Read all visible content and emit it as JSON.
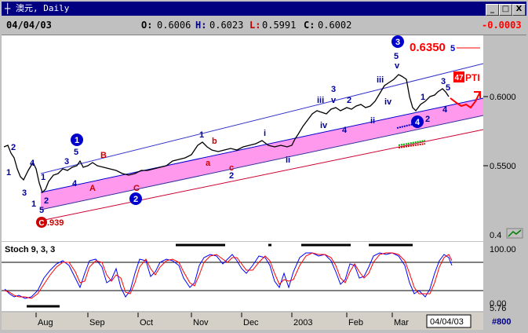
{
  "window": {
    "icon": "chart-cross-icon",
    "title": "澳元, Daily",
    "buttons": [
      "_",
      "□",
      "X"
    ]
  },
  "infobar": {
    "date": "04/04/03",
    "open_label": "O:",
    "open": "0.6006",
    "high_label": "H:",
    "high": "0.6023",
    "low_label": "L:",
    "low": "0.5991",
    "close_label": "C:",
    "close": "0.6002",
    "change": "-0.0003"
  },
  "price_scale": {
    "ticks": [
      "0.6000",
      "0.5500"
    ],
    "bottom_label": "0.4",
    "corner_icon": "chart-icon"
  },
  "annotations": {
    "target_price": "0.6350",
    "target_wave": "5",
    "pti_badge": "47",
    "pti_text": "PTI",
    "low_value": ".939",
    "circle_c_bottom": "C",
    "circle_1": "1",
    "circle_2": "2",
    "circle_3": "3",
    "circle_4": "4"
  },
  "wave_labels_blue": [
    "2",
    "1",
    "4",
    "3",
    "1",
    "3",
    "5",
    "4",
    "1",
    "2",
    "5",
    "2",
    "1",
    "i",
    "ii",
    "iii",
    "v",
    "3",
    "iv",
    "4",
    "ii",
    "iii",
    "iv",
    "5",
    "v",
    "1",
    "2",
    "3",
    "4",
    "5"
  ],
  "wave_labels_red": [
    "B",
    "A",
    "C",
    "b",
    "a",
    "c"
  ],
  "stochastic": {
    "title": "Stoch 9, 3, 3",
    "upper_label": "100.00",
    "bottom_label": "0.00",
    "value_label": "5.76"
  },
  "x_axis": {
    "months": [
      "Aug",
      "Sep",
      "Oct",
      "Nov",
      "Dec",
      "2003",
      "Feb",
      "Mar"
    ],
    "current_date": "04/04/03",
    "bar_count": "#800"
  }
}
